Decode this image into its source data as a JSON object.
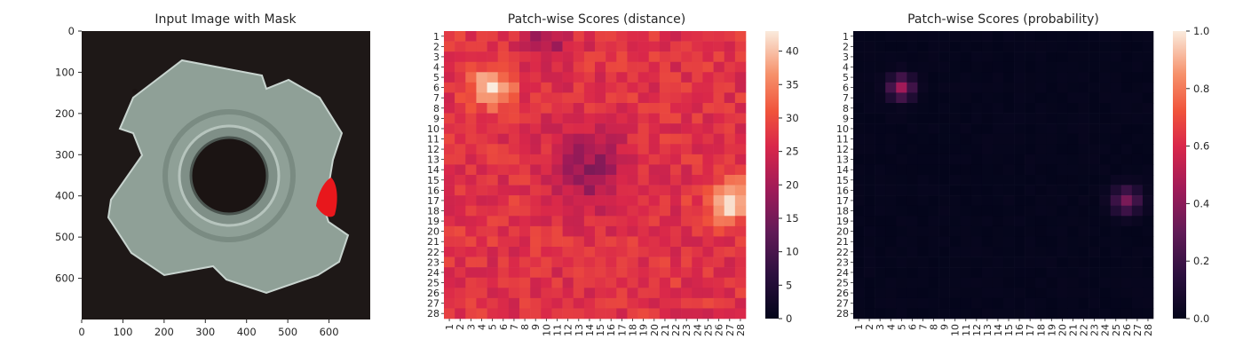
{
  "figure": {
    "panel1_title": "Input Image with Mask",
    "panel2_title": "Patch-wise Scores (distance)",
    "panel3_title": "Patch-wise Scores (probability)"
  },
  "chart_data": [
    {
      "type": "image",
      "title": "Input Image with Mask",
      "xlim": [
        0,
        700
      ],
      "ylim": [
        700,
        0
      ],
      "xticks": [
        "0",
        "100",
        "200",
        "300",
        "400",
        "500",
        "600"
      ],
      "yticks": [
        "0",
        "100",
        "200",
        "300",
        "400",
        "500",
        "600"
      ],
      "mask": {
        "color": "#e8171c",
        "x_range": [
          570,
          620
        ],
        "y_range": [
          360,
          460
        ]
      },
      "colors": {
        "background": "#1e1817",
        "object": "#9aaba3"
      }
    },
    {
      "type": "heatmap",
      "title": "Patch-wise Scores (distance)",
      "rows": 28,
      "cols": 28,
      "row_labels": [
        "1",
        "2",
        "3",
        "4",
        "5",
        "6",
        "7",
        "8",
        "9",
        "10",
        "11",
        "12",
        "13",
        "14",
        "15",
        "16",
        "17",
        "18",
        "19",
        "20",
        "21",
        "22",
        "23",
        "24",
        "25",
        "26",
        "27",
        "28"
      ],
      "col_labels": [
        "1",
        "2",
        "3",
        "4",
        "5",
        "6",
        "7",
        "8",
        "9",
        "10",
        "11",
        "12",
        "13",
        "14",
        "15",
        "16",
        "17",
        "18",
        "19",
        "20",
        "21",
        "22",
        "23",
        "24",
        "25",
        "26",
        "27",
        "28"
      ],
      "vmin": 0,
      "vmax": 43,
      "colorbar_ticks": [
        "0",
        "5",
        "10",
        "15",
        "20",
        "25",
        "30",
        "35",
        "40"
      ],
      "colormap": "rocket",
      "hotspots": [
        {
          "row": 6,
          "col": 5,
          "value": 42,
          "sigma": 1.3
        },
        {
          "row": 17,
          "col": 27,
          "value": 43,
          "sigma": 1.4
        }
      ],
      "low_regions": [
        {
          "row": 14,
          "col": 14,
          "value": 17,
          "sigma": 2.5
        },
        {
          "row": 1,
          "col": 10,
          "value": 18,
          "sigma": 1.5
        }
      ],
      "base_value": 27
    },
    {
      "type": "heatmap",
      "title": "Patch-wise Scores (probability)",
      "rows": 28,
      "cols": 28,
      "row_labels": [
        "1",
        "2",
        "3",
        "4",
        "5",
        "6",
        "7",
        "8",
        "9",
        "10",
        "11",
        "12",
        "13",
        "14",
        "15",
        "16",
        "17",
        "18",
        "19",
        "20",
        "21",
        "22",
        "23",
        "24",
        "25",
        "26",
        "27",
        "28"
      ],
      "col_labels": [
        "1",
        "2",
        "3",
        "4",
        "5",
        "6",
        "7",
        "8",
        "9",
        "10",
        "11",
        "12",
        "13",
        "14",
        "15",
        "16",
        "17",
        "18",
        "19",
        "20",
        "21",
        "22",
        "23",
        "24",
        "25",
        "26",
        "27",
        "28"
      ],
      "vmin": 0,
      "vmax": 1,
      "colorbar_ticks": [
        "0.0",
        "0.2",
        "0.4",
        "0.6",
        "0.8",
        "1.0"
      ],
      "colormap": "rocket",
      "hotspots": [
        {
          "row": 6,
          "col": 5,
          "value": 0.45,
          "sigma": 0.8
        },
        {
          "row": 17,
          "col": 26,
          "value": 0.35,
          "sigma": 0.9
        }
      ],
      "base_value": 0.01
    }
  ]
}
